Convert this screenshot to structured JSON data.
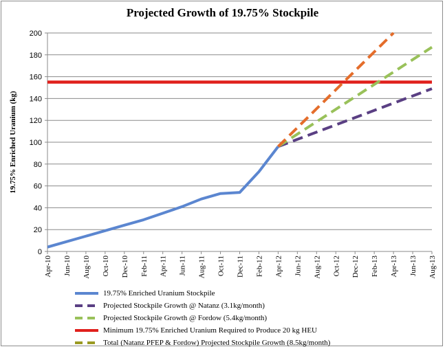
{
  "chart_data": {
    "type": "line",
    "title": "Projected Growth of 19.75% Stockpile",
    "ylabel": "19.75% Enriched Uranium (kg)",
    "xlabel": "",
    "ylim": [
      0,
      200
    ],
    "yticks": [
      0,
      20,
      40,
      60,
      80,
      100,
      120,
      140,
      160,
      180,
      200
    ],
    "categories": [
      "Apr-10",
      "Jun-10",
      "Aug-10",
      "Oct-10",
      "Dec-10",
      "Feb-11",
      "Apr-11",
      "Jun-11",
      "Aug-11",
      "Oct-11",
      "Dec-11",
      "Feb-12",
      "Apr-12",
      "Jun-12",
      "Aug-12",
      "Oct-12",
      "Dec-12",
      "Feb-13",
      "Apr-13",
      "Jun-13",
      "Aug-13"
    ],
    "grid": true,
    "legend_position": "bottom",
    "series": [
      {
        "name": "19.75% Enriched Uranium Stockpile",
        "color": "#5b86d0",
        "style": "solid",
        "points": [
          [
            "Apr-10",
            4
          ],
          [
            "Jun-10",
            9
          ],
          [
            "Aug-10",
            14
          ],
          [
            "Oct-10",
            19
          ],
          [
            "Dec-10",
            24
          ],
          [
            "Feb-11",
            29
          ],
          [
            "Apr-11",
            35
          ],
          [
            "Jun-11",
            41
          ],
          [
            "Aug-11",
            48
          ],
          [
            "Oct-11",
            53
          ],
          [
            "Dec-11",
            54
          ],
          [
            "Feb-12",
            73
          ],
          [
            "Apr-12",
            96
          ]
        ]
      },
      {
        "name": "Projected Stockpile Growth @ Natanz (3.1kg/month)",
        "color": "#5a3f83",
        "style": "dashed",
        "points": [
          [
            "Apr-12",
            96
          ],
          [
            "Aug-13",
            149
          ]
        ]
      },
      {
        "name": "Projected Stockpile Growth @ Fordow (5.4kg/month)",
        "color": "#99c15a",
        "style": "dashed",
        "points": [
          [
            "Apr-12",
            96
          ],
          [
            "Aug-13",
            187
          ]
        ]
      },
      {
        "name": "Minimum 19.75% Enriched Uranium Required to Produce 20 kg HEU",
        "color": "#e0201c",
        "style": "solid-thick",
        "points": [
          [
            "Apr-10",
            155
          ],
          [
            "Aug-13",
            155
          ]
        ]
      },
      {
        "name": "Total (Natanz PFEP & Fordow) Projected Stockpile Growth (8.5kg/month)",
        "color": "#e46d2b",
        "legend_color": "#9a9a22",
        "style": "dashed",
        "points": [
          [
            "Apr-12",
            96
          ],
          [
            "Apr-13",
            200
          ]
        ]
      }
    ]
  }
}
